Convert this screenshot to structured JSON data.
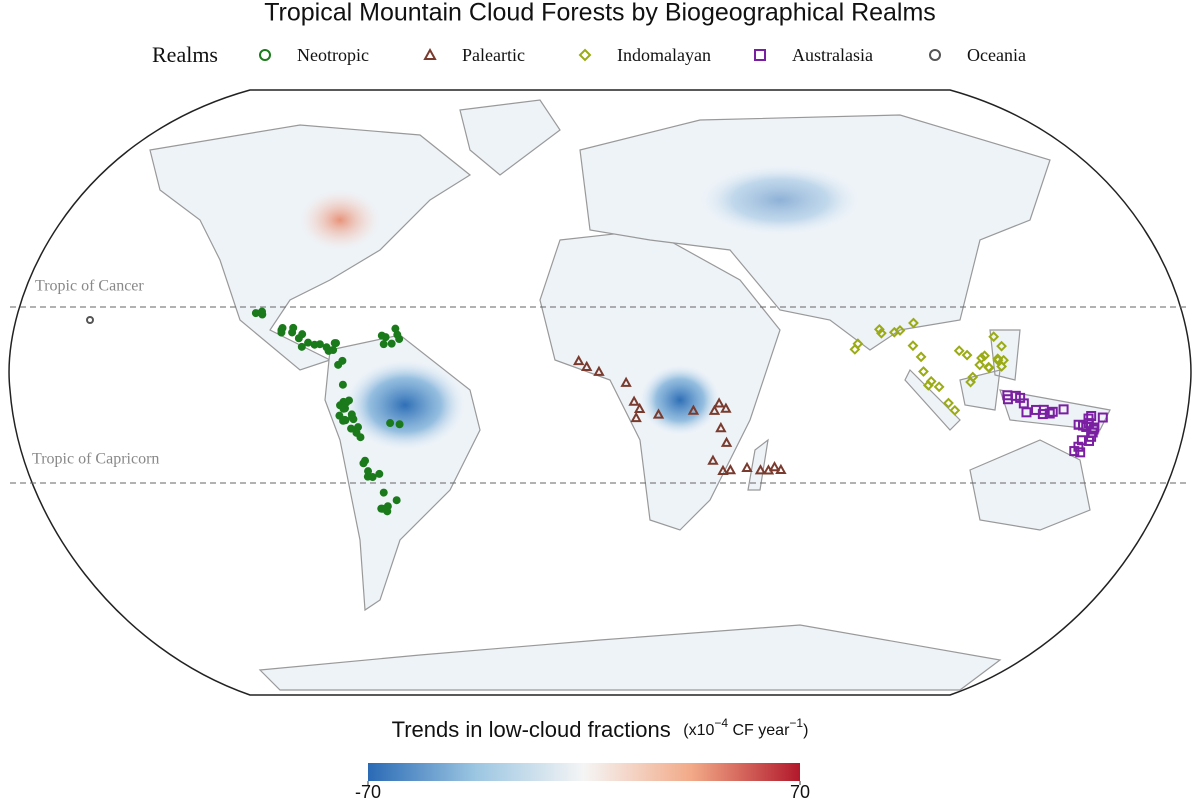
{
  "title": "Tropical Mountain Cloud Forests by Biogeographical Realms",
  "legend": {
    "title": "Realms",
    "entries": [
      {
        "name": "Neotropic",
        "color": "#1b7a1b",
        "marker": "circle"
      },
      {
        "name": "Paleartic",
        "color": "#7a3b2e",
        "marker": "triangle"
      },
      {
        "name": "Indomalayan",
        "color": "#9aab16",
        "marker": "diamond"
      },
      {
        "name": "Australasia",
        "color": "#7b1fa2",
        "marker": "square"
      },
      {
        "name": "Oceania",
        "color": "#555555",
        "marker": "circle"
      }
    ]
  },
  "map": {
    "tropic_cancer": "Tropic of Cancer",
    "tropic_capricorn": "Tropic of Capricorn"
  },
  "colorbar": {
    "title": "Trends in low-cloud fractions",
    "unit_prefix": "(x10",
    "unit_exp1": "−4",
    "unit_mid": " CF year",
    "unit_exp2": "−1",
    "unit_suffix": ")",
    "lim": [
      -70,
      70
    ],
    "ticks": [
      -70,
      70
    ],
    "colors": [
      "#2a6ab5",
      "#9cc6e2",
      "#f5f5f5",
      "#f2a987",
      "#b2182b"
    ]
  }
}
